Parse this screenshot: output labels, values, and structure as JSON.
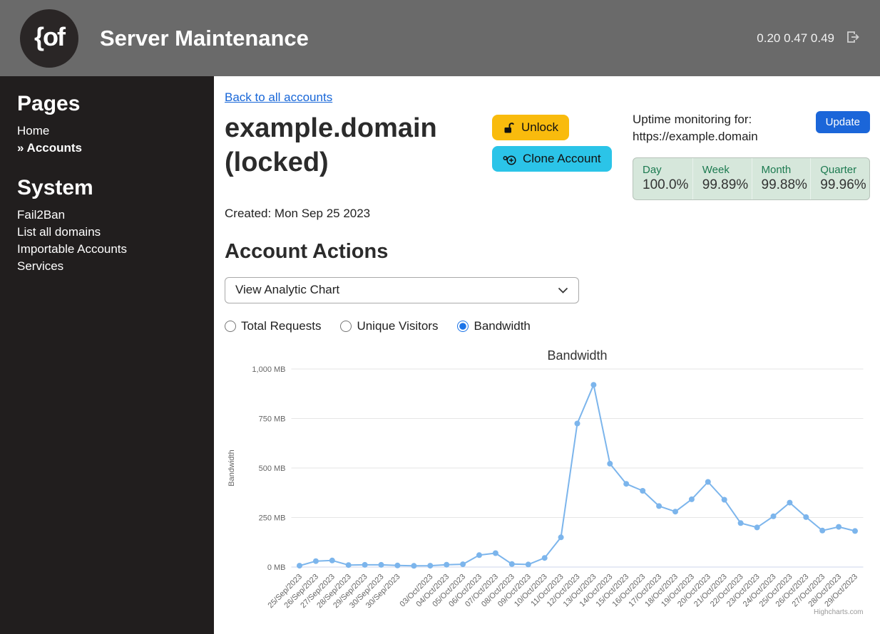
{
  "header": {
    "logo_text": "{of",
    "title": "Server Maintenance",
    "load_averages": "0.20 0.47 0.49"
  },
  "sidebar": {
    "sections": [
      {
        "heading": "Pages",
        "items": [
          {
            "label": "Home"
          },
          {
            "label": "» Accounts"
          }
        ]
      },
      {
        "heading": "System",
        "items": [
          {
            "label": "Fail2Ban"
          },
          {
            "label": "List all domains"
          },
          {
            "label": "Importable Accounts"
          },
          {
            "label": "Services"
          }
        ]
      }
    ]
  },
  "main": {
    "back_link": "Back to all accounts",
    "title": "example.domain (locked)",
    "unlock_button": "Unlock",
    "clone_button": "Clone Account",
    "created": "Created: Mon Sep 25 2023",
    "uptime": {
      "heading_line1": "Uptime monitoring for:",
      "heading_line2": "https://example.domain",
      "update_button": "Update",
      "stats": [
        {
          "label": "Day",
          "value": "100.0%"
        },
        {
          "label": "Week",
          "value": "99.89%"
        },
        {
          "label": "Month",
          "value": "99.88%"
        },
        {
          "label": "Quarter",
          "value": "99.96%"
        }
      ]
    },
    "section_heading": "Account Actions",
    "action_select": {
      "value": "View Analytic Chart"
    },
    "radios": [
      {
        "label": "Total Requests",
        "checked": false
      },
      {
        "label": "Unique Visitors",
        "checked": false
      },
      {
        "label": "Bandwidth",
        "checked": true
      }
    ]
  },
  "chart_data": {
    "type": "line",
    "title": "Bandwidth",
    "yaxis_title": "Bandwidth",
    "series_name": "Bandwidth",
    "categories": [
      "25/Sep/2023",
      "26/Sep/2023",
      "27/Sep/2023",
      "28/Sep/2023",
      "29/Sep/2023",
      "30/Sep/2023",
      "30/Sep/2023",
      "",
      "03/Oct/2023",
      "04/Oct/2023",
      "05/Oct/2023",
      "06/Oct/2023",
      "07/Oct/2023",
      "08/Oct/2023",
      "09/Oct/2023",
      "10/Oct/2023",
      "11/Oct/2023",
      "12/Oct/2023",
      "13/Oct/2023",
      "14/Oct/2023",
      "15/Oct/2023",
      "16/Oct/2023",
      "17/Oct/2023",
      "18/Oct/2023",
      "19/Oct/2023",
      "20/Oct/2023",
      "21/Oct/2023",
      "22/Oct/2023",
      "23/Oct/2023",
      "24/Oct/2023",
      "25/Oct/2023",
      "26/Oct/2023",
      "27/Oct/2023",
      "28/Oct/2023",
      "29/Oct/2023"
    ],
    "values": [
      7,
      30,
      33,
      10,
      11,
      11,
      8,
      6,
      7,
      12,
      14,
      60,
      70,
      15,
      13,
      46,
      150,
      725,
      920,
      522,
      420,
      385,
      308,
      280,
      342,
      430,
      340,
      222,
      200,
      256,
      325,
      252,
      184,
      203,
      182
    ],
    "unit": "MB",
    "ylim": [
      0,
      1000
    ],
    "ytick_values": [
      0,
      250,
      500,
      750,
      1000
    ],
    "ytick_labels": [
      "0 MB",
      "250 MB",
      "500 MB",
      "750 MB",
      "1,000 MB"
    ],
    "line_color": "#7cb5ec",
    "grid": true,
    "legend_position": "none",
    "credits": "Highcharts.com"
  },
  "colors": {
    "header_bg": "#6a6a6a",
    "sidebar_bg": "#211e1e",
    "link_blue": "#1766d8",
    "unlock_yellow": "#f9bb0d",
    "clone_cyan": "#2bc4e8",
    "update_blue": "#1b66d9",
    "uptime_bg": "#d6e7db",
    "uptime_label_green": "#1c7a50",
    "chart_line": "#7cb5ec"
  }
}
